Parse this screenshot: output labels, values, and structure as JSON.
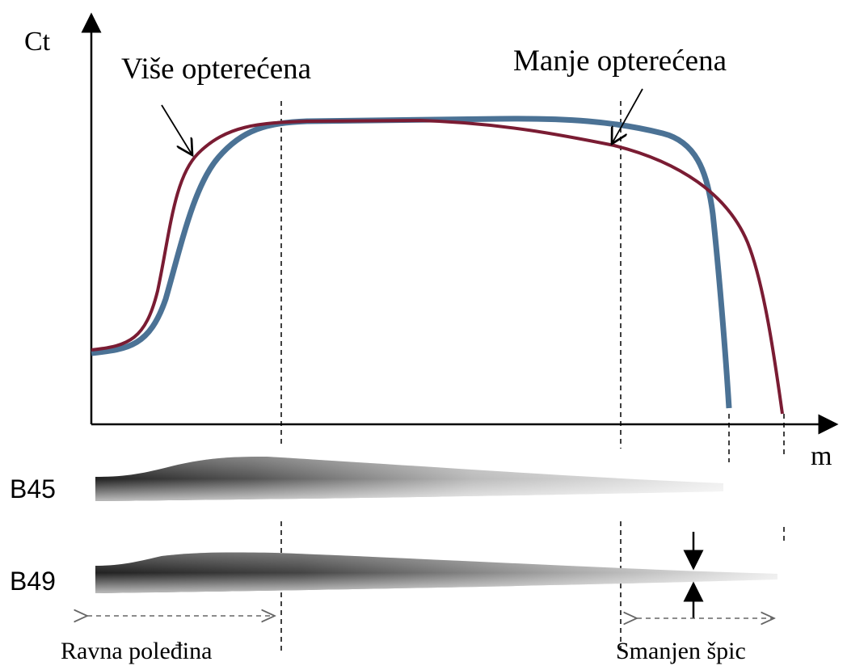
{
  "axes": {
    "y_label": "Ct",
    "x_label": "m"
  },
  "curves": [
    {
      "label": "Više opterećena"
    },
    {
      "label": "Manje opterećena"
    }
  ],
  "blades": [
    {
      "label": "B45"
    },
    {
      "label": "B49"
    }
  ],
  "regions": [
    {
      "label": "Ravna poleđina"
    },
    {
      "label": "Smanjen špic"
    }
  ]
}
